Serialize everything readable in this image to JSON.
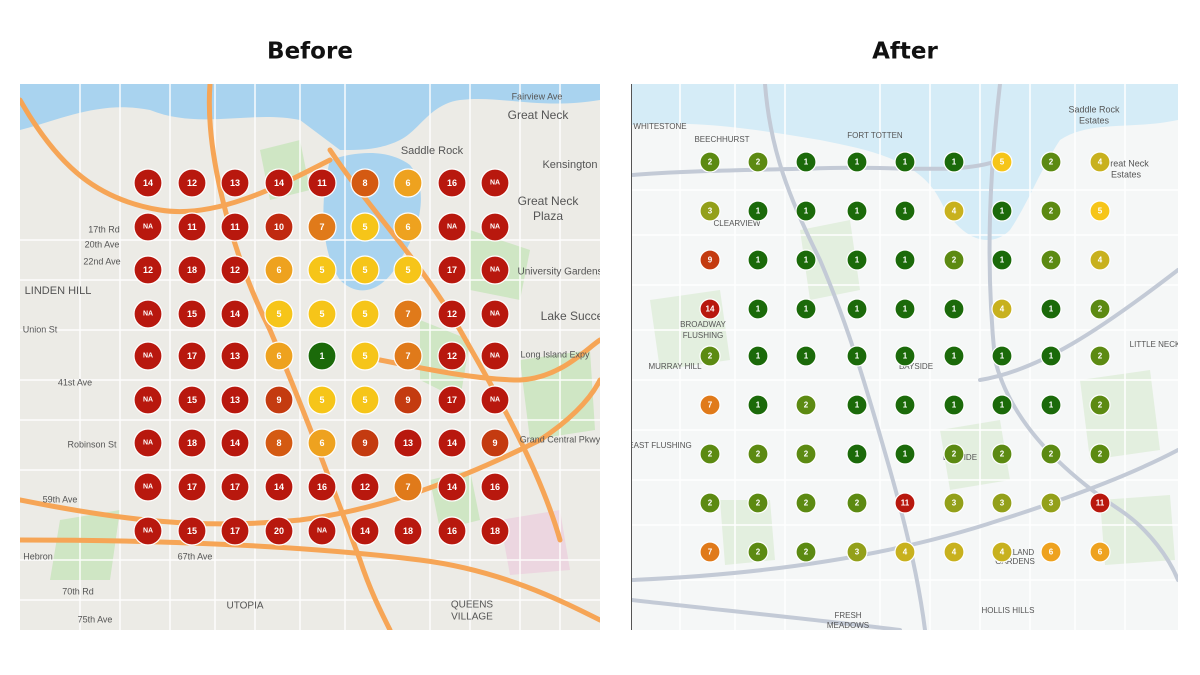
{
  "before": {
    "title": "Before",
    "map_labels": [
      "Fairview Ave",
      "Great Neck",
      "Saddle Rock",
      "Kensington",
      "Great Neck",
      "Plaza",
      "University Gardens",
      "Lake Success",
      "LINDEN HILL",
      "20th Ave",
      "22nd Ave",
      "17th Rd",
      "41st Ave",
      "59th Ave",
      "67th Ave",
      "70th Rd",
      "75th Ave",
      "UTOPIA",
      "QUEENS",
      "VILLAGE",
      "Hebron",
      "Long Island Expy",
      "Grand Central Pkwy",
      "Robinson St",
      "Union St"
    ],
    "grid": [
      [
        14,
        12,
        13,
        14,
        11,
        8,
        6,
        16,
        "NA"
      ],
      [
        "NA",
        11,
        11,
        10,
        7,
        5,
        6,
        "NA",
        "NA"
      ],
      [
        12,
        18,
        12,
        6,
        5,
        5,
        5,
        17,
        "NA"
      ],
      [
        "NA",
        15,
        14,
        5,
        5,
        5,
        7,
        12,
        "NA"
      ],
      [
        "NA",
        17,
        13,
        6,
        1,
        5,
        7,
        12,
        "NA"
      ],
      [
        "NA",
        15,
        13,
        9,
        5,
        5,
        9,
        17,
        "NA"
      ],
      [
        "NA",
        18,
        14,
        8,
        6,
        9,
        13,
        14,
        9
      ],
      [
        "NA",
        17,
        17,
        14,
        16,
        12,
        7,
        14,
        16
      ],
      [
        "NA",
        15,
        17,
        20,
        "NA",
        14,
        18,
        16,
        18
      ]
    ]
  },
  "after": {
    "title": "After",
    "map_labels": [
      "WHITESTONE",
      "BEECHHURST",
      "FORT TOTTEN",
      "Saddle Rock",
      "Estates",
      "Great Neck",
      "Estates",
      "CLEARVIEW",
      "BROADWAY",
      "FLUSHING",
      "MURRAY HILL",
      "BAYSIDE",
      "LITTLE NECK",
      "EAST FLUSHING",
      "BAYSIDE",
      "FRESH",
      "MEADOWS",
      "HOLLIS HILLS",
      "OAKLAND",
      "GARDENS"
    ],
    "grid": [
      [
        2,
        2,
        1,
        1,
        1,
        1,
        5,
        2,
        4
      ],
      [
        3,
        1,
        1,
        1,
        1,
        4,
        1,
        2,
        5
      ],
      [
        9,
        1,
        1,
        1,
        1,
        2,
        1,
        2,
        4
      ],
      [
        14,
        1,
        1,
        1,
        1,
        1,
        4,
        1,
        2
      ],
      [
        2,
        1,
        1,
        1,
        1,
        1,
        1,
        1,
        2
      ],
      [
        7,
        1,
        2,
        1,
        1,
        1,
        1,
        1,
        2
      ],
      [
        2,
        2,
        2,
        1,
        1,
        2,
        2,
        2,
        2
      ],
      [
        2,
        2,
        2,
        2,
        11,
        3,
        3,
        3,
        11
      ],
      [
        7,
        2,
        2,
        3,
        4,
        4,
        4,
        6,
        6
      ]
    ]
  }
}
